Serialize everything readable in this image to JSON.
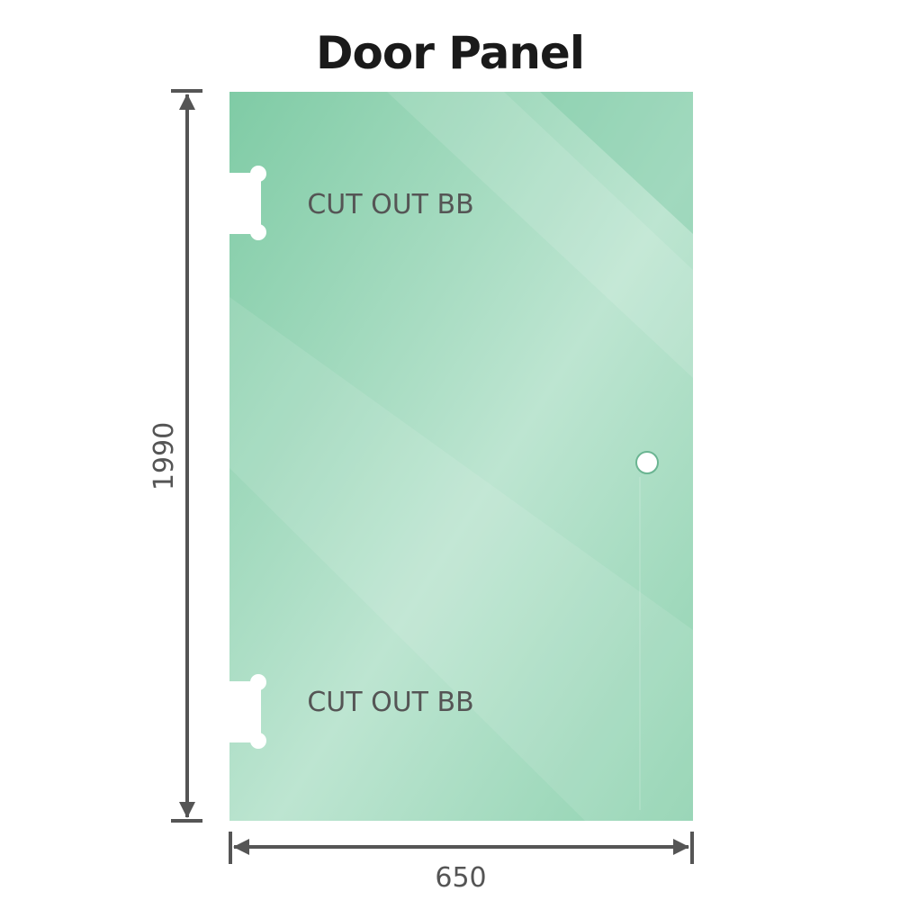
{
  "title": "Door Panel",
  "dimensions": {
    "height": "1990",
    "width": "650"
  },
  "cutouts": [
    {
      "label": "CUT OUT BB"
    },
    {
      "label": "CUT OUT BB"
    }
  ],
  "colors": {
    "glass": "#7fcba5",
    "glass_light": "#bfe6d3",
    "dimension_line": "#555555",
    "text": "#555555"
  }
}
